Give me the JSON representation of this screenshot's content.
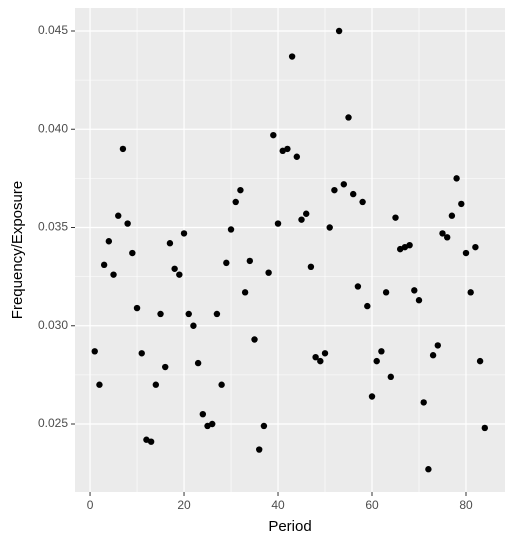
{
  "chart_data": {
    "type": "scatter",
    "x_label": "Period",
    "y_label": "Frequency/Exposure",
    "x": [
      1,
      2,
      3,
      4,
      5,
      6,
      7,
      8,
      9,
      10,
      11,
      12,
      13,
      14,
      15,
      16,
      17,
      18,
      19,
      20,
      21,
      22,
      23,
      24,
      25,
      26,
      27,
      28,
      29,
      30,
      31,
      32,
      33,
      34,
      35,
      36,
      37,
      38,
      39,
      40,
      41,
      42,
      43,
      44,
      45,
      46,
      47,
      48,
      49,
      50,
      51,
      52,
      53,
      54,
      55,
      56,
      57,
      58,
      59,
      60,
      61,
      62,
      63,
      64,
      65,
      66,
      67,
      68,
      69,
      70,
      71,
      72,
      73,
      74,
      75,
      76,
      77,
      78,
      79,
      80,
      81,
      82,
      83,
      84
    ],
    "series": [
      {
        "color": "#000000",
        "values": [
          0.0287,
          0.027,
          0.0331,
          0.0343,
          0.0326,
          0.0356,
          0.039,
          0.0352,
          0.0337,
          0.0309,
          0.0286,
          0.0242,
          0.0241,
          0.027,
          0.0306,
          0.0279,
          0.0342,
          0.0329,
          0.0326,
          0.0347,
          0.0306,
          0.03,
          0.0281,
          0.0255,
          0.0249,
          0.025,
          0.0306,
          0.027,
          0.0332,
          0.0349,
          0.0363,
          0.0369,
          0.0317,
          0.0333,
          0.0293,
          0.0237,
          0.0249,
          0.0327,
          0.0397,
          0.0352,
          0.0389,
          0.039,
          0.0437,
          0.0386,
          0.0354,
          0.0357,
          0.033,
          0.0284,
          0.0282,
          0.0286,
          0.035,
          0.0369,
          0.045,
          0.0372,
          0.0406,
          0.0367,
          0.032,
          0.0363,
          0.031,
          0.0264,
          0.0282,
          0.0287,
          0.0317,
          0.0274,
          0.0355,
          0.0339,
          0.034,
          0.0341,
          0.0318,
          0.0313,
          0.0261,
          0.0227,
          0.0285,
          0.029,
          0.0347,
          0.0345,
          0.0356,
          0.0375,
          0.0362,
          0.0337,
          0.0317,
          0.034,
          0.0282,
          0.0248
        ]
      }
    ],
    "xlim": [
      -3.2,
      88.3
    ],
    "xticks": [
      0,
      20,
      40,
      60,
      80
    ],
    "ylim": [
      0.02154,
      0.04617
    ],
    "yticks": [
      0.025,
      {
        "value": 0.03,
        "label": "0.030"
      },
      0.035,
      {
        "value": 0.04,
        "label": "0.040"
      },
      0.045
    ],
    "grid": true
  }
}
